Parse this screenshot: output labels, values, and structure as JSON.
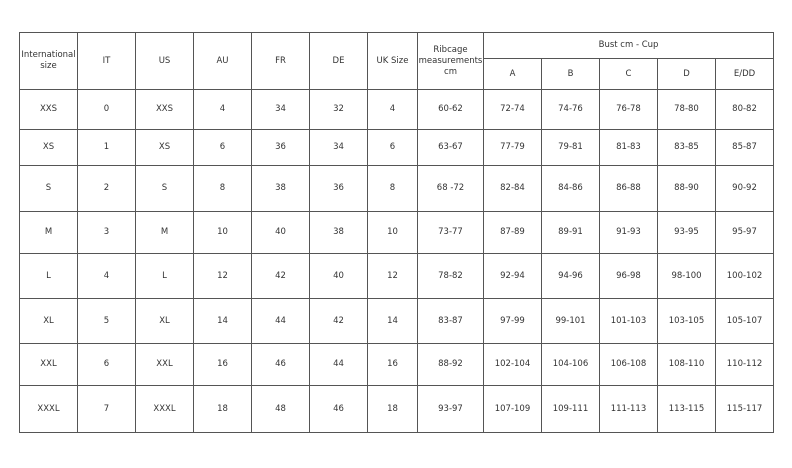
{
  "header": {
    "international": "International size",
    "it": "IT",
    "us": "US",
    "au": "AU",
    "fr": "FR",
    "de": "DE",
    "uk": "UK Size",
    "ribcage": "Ribcage measurements cm",
    "bust": "Bust cm - Cup",
    "cups": [
      "A",
      "B",
      "C",
      "D",
      "E/DD"
    ]
  },
  "rows": [
    [
      "XXS",
      "0",
      "XXS",
      "4",
      "34",
      "32",
      "4",
      "60-62",
      "72-74",
      "74-76",
      "76-78",
      "78-80",
      "80-82"
    ],
    [
      "XS",
      "1",
      "XS",
      "6",
      "36",
      "34",
      "6",
      "63-67",
      "77-79",
      "79-81",
      "81-83",
      "83-85",
      "85-87"
    ],
    [
      "S",
      "2",
      "S",
      "8",
      "38",
      "36",
      "8",
      "68 -72",
      "82-84",
      "84-86",
      "86-88",
      "88-90",
      "90-92"
    ],
    [
      "M",
      "3",
      "M",
      "10",
      "40",
      "38",
      "10",
      "73-77",
      "87-89",
      "89-91",
      "91-93",
      "93-95",
      "95-97"
    ],
    [
      "L",
      "4",
      "L",
      "12",
      "42",
      "40",
      "12",
      "78-82",
      "92-94",
      "94-96",
      "96-98",
      "98-100",
      "100-102"
    ],
    [
      "XL",
      "5",
      "XL",
      "14",
      "44",
      "42",
      "14",
      "83-87",
      "97-99",
      "99-101",
      "101-103",
      "103-105",
      "105-107"
    ],
    [
      "XXL",
      "6",
      "XXL",
      "16",
      "46",
      "44",
      "16",
      "88-92",
      "102-104",
      "104-106",
      "106-108",
      "108-110",
      "110-112"
    ],
    [
      "XXXL",
      "7",
      "XXXL",
      "18",
      "48",
      "46",
      "18",
      "93-97",
      "107-109",
      "109-111",
      "111-113",
      "113-115",
      "115-117"
    ]
  ]
}
